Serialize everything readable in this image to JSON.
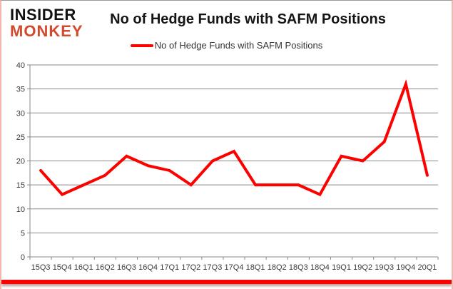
{
  "logo": {
    "line1": "INSIDER",
    "line2": "MONKEY"
  },
  "title": "No of Hedge Funds with SAFM Positions",
  "legend": {
    "label": "No of Hedge Funds with SAFM Positions"
  },
  "chart_data": {
    "type": "line",
    "title": "No of Hedge Funds with SAFM Positions",
    "categories": [
      "15Q3",
      "15Q4",
      "16Q1",
      "16Q2",
      "16Q3",
      "16Q4",
      "17Q1",
      "17Q2",
      "17Q3",
      "17Q4",
      "18Q1",
      "18Q2",
      "18Q3",
      "18Q4",
      "19Q1",
      "19Q2",
      "19Q3",
      "19Q4",
      "20Q1"
    ],
    "series": [
      {
        "name": "No of Hedge Funds with SAFM Positions",
        "values": [
          18,
          13,
          15,
          17,
          21,
          19,
          18,
          15,
          20,
          22,
          15,
          15,
          15,
          13,
          21,
          20,
          24,
          36,
          17
        ]
      }
    ],
    "ylim": [
      0,
      40
    ],
    "ytick_step": 5,
    "grid": true,
    "legend_position": "top",
    "line_color": "#fe0000",
    "grid_color": "#8a8a8a",
    "axis_text_color": "#3a3a3a"
  },
  "colors": {
    "logo_accent": "#d24a2e",
    "bottom_bar": "#f90500",
    "frame_border": "#f3b6aa"
  }
}
